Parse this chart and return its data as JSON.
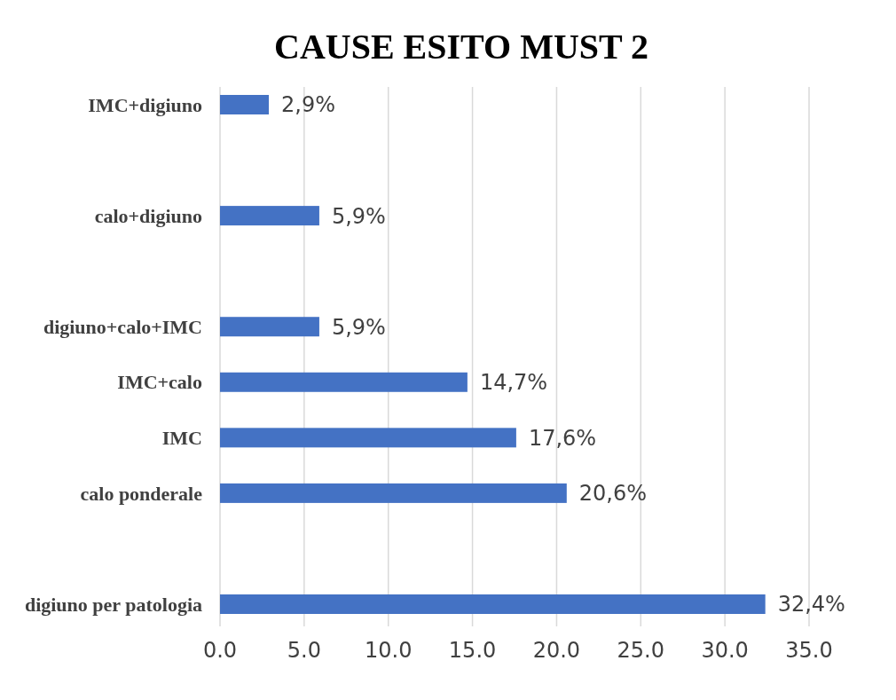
{
  "chart_data": {
    "type": "bar",
    "orientation": "horizontal",
    "title": "CAUSE ESITO MUST 2",
    "categories": [
      "IMC+digiuno",
      null,
      "calo+digiuno",
      null,
      "digiuno+calo+IMC",
      "IMC+calo",
      "IMC",
      "calo ponderale",
      null,
      "digiuno per patologia"
    ],
    "values": [
      2.9,
      null,
      5.9,
      null,
      5.9,
      14.7,
      17.6,
      20.6,
      null,
      32.4
    ],
    "value_labels": [
      "2,9%",
      null,
      "5,9%",
      null,
      "5,9%",
      "14,7%",
      "17,6%",
      "20,6%",
      null,
      "32,4%"
    ],
    "color": "#4472c4",
    "xlim": [
      0,
      35
    ],
    "xticks": [
      {
        "value": 0,
        "label": "0.0"
      },
      {
        "value": 5,
        "label": "5.0"
      },
      {
        "value": 10,
        "label": "10.0"
      },
      {
        "value": 15,
        "label": "15.0"
      },
      {
        "value": 20,
        "label": "20.0"
      },
      {
        "value": 25,
        "label": "25.0"
      },
      {
        "value": 30,
        "label": "30.0"
      },
      {
        "value": 35,
        "label": "35.0"
      }
    ],
    "grid": "x"
  }
}
